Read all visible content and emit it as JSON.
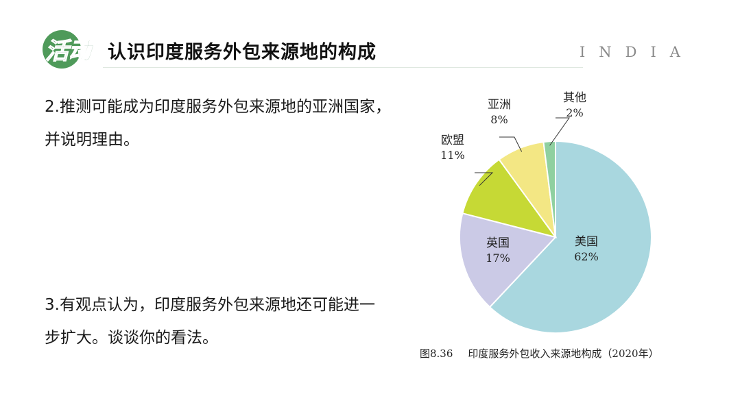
{
  "header": {
    "logo_text": "活动",
    "title": "认识印度服务外包来源地的构成",
    "tag": "INDIA"
  },
  "questions": [
    {
      "lines": [
        "2.推测可能成为印度服务外包来源地的亚洲国家，",
        "并说明理由。"
      ]
    },
    {
      "lines": [
        "3.有观点认为，印度服务外包来源地还可能进一",
        "步扩大。谈谈你的看法。"
      ]
    }
  ],
  "caption": {
    "number": "图8.36",
    "text": "印度服务外包收入来源地构成（2020年）"
  },
  "chart_data": {
    "type": "pie",
    "title": "",
    "slices": [
      {
        "label": "美国",
        "value": 62,
        "value_label": "62%",
        "color": "#a9d7df"
      },
      {
        "label": "英国",
        "value": 17,
        "value_label": "17%",
        "color": "#cbcae6"
      },
      {
        "label": "欧盟",
        "value": 11,
        "value_label": "11%",
        "color": "#c6d935"
      },
      {
        "label": "亚洲",
        "value": 8,
        "value_label": "8%",
        "color": "#f3e784"
      },
      {
        "label": "其他",
        "value": 2,
        "value_label": "2%",
        "color": "#8fd0a0"
      }
    ]
  }
}
